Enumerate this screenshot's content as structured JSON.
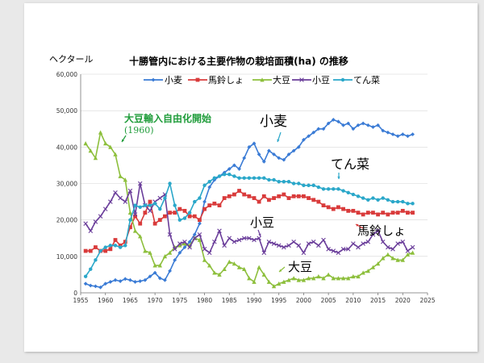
{
  "chart_data": {
    "type": "line",
    "title": "十勝管内における主要作物の栽培面積(ha) の推移",
    "ylabel": "ヘクタール",
    "xlim": [
      1955,
      2025
    ],
    "ylim": [
      0,
      60000
    ],
    "xticks": [
      1955,
      1960,
      1965,
      1970,
      1975,
      1980,
      1985,
      1990,
      1995,
      2000,
      2005,
      2010,
      2015,
      2020,
      2025
    ],
    "yticks": [
      0,
      10000,
      20000,
      30000,
      40000,
      50000,
      60000
    ],
    "ytick_labels": [
      "0",
      "10,000",
      "20,000",
      "30,000",
      "40,000",
      "50,000",
      "60,000"
    ],
    "grid": true,
    "legend_position": "top",
    "x": [
      1956,
      1957,
      1958,
      1959,
      1960,
      1961,
      1962,
      1963,
      1964,
      1965,
      1966,
      1967,
      1968,
      1969,
      1970,
      1971,
      1972,
      1973,
      1974,
      1975,
      1976,
      1977,
      1978,
      1979,
      1980,
      1981,
      1982,
      1983,
      1984,
      1985,
      1986,
      1987,
      1988,
      1989,
      1990,
      1991,
      1992,
      1993,
      1994,
      1995,
      1996,
      1997,
      1998,
      1999,
      2000,
      2001,
      2002,
      2003,
      2004,
      2005,
      2006,
      2007,
      2008,
      2009,
      2010,
      2011,
      2012,
      2013,
      2014,
      2015,
      2016,
      2017,
      2018,
      2019,
      2020,
      2021,
      2022
    ],
    "series": [
      {
        "name": "小麦",
        "color": "#3a7bd5",
        "marker": "diamond",
        "values": [
          2500,
          2000,
          1800,
          1500,
          2500,
          3000,
          3500,
          3200,
          3800,
          3500,
          3000,
          3200,
          3500,
          4500,
          5500,
          4000,
          3500,
          6000,
          9000,
          11000,
          12500,
          14000,
          16000,
          19000,
          25000,
          29000,
          31000,
          32000,
          33000,
          34000,
          35000,
          34000,
          37000,
          40000,
          41000,
          38000,
          36000,
          39000,
          38000,
          37000,
          36500,
          38000,
          39000,
          40000,
          42000,
          43000,
          44000,
          45000,
          45000,
          46500,
          47500,
          47000,
          46000,
          46500,
          45000,
          46000,
          46500,
          46000,
          45500,
          46000,
          44500,
          44000,
          43500,
          43000,
          43500,
          43000,
          43500
        ]
      },
      {
        "name": "馬鈴しょ",
        "color": "#d93b3b",
        "marker": "square",
        "values": [
          11500,
          11500,
          12500,
          11500,
          11500,
          12000,
          14500,
          13000,
          14000,
          18000,
          21000,
          19000,
          22000,
          25000,
          19000,
          20000,
          21000,
          22000,
          22000,
          23000,
          22500,
          21000,
          21000,
          20000,
          23000,
          24000,
          24500,
          24000,
          26000,
          26500,
          27000,
          28000,
          27000,
          26500,
          26000,
          25000,
          26500,
          25500,
          26000,
          26500,
          27000,
          26000,
          26500,
          26500,
          26500,
          26000,
          25500,
          25000,
          24000,
          23500,
          23000,
          23500,
          23000,
          22500,
          22500,
          22000,
          21500,
          22000,
          22000,
          21500,
          22000,
          21500,
          22000,
          22000,
          22500,
          22000,
          22000
        ]
      },
      {
        "name": "大豆",
        "color": "#8dbf3c",
        "marker": "triangle",
        "values": [
          41000,
          39000,
          37000,
          44000,
          41000,
          40000,
          38000,
          32000,
          31000,
          22000,
          17000,
          15500,
          11500,
          11000,
          7500,
          7500,
          10000,
          11000,
          12500,
          13000,
          13500,
          13000,
          15000,
          14500,
          9000,
          7500,
          5500,
          5000,
          6500,
          8500,
          8000,
          7000,
          6500,
          4000,
          3000,
          7000,
          5000,
          3000,
          1800,
          2500,
          3000,
          3500,
          4000,
          3500,
          3500,
          4000,
          4000,
          4500,
          4000,
          5000,
          4000,
          4000,
          4000,
          4000,
          4500,
          4500,
          5500,
          6000,
          7000,
          8000,
          9500,
          10500,
          9500,
          9000,
          9000,
          10500,
          11000
        ]
      },
      {
        "name": "小豆",
        "color": "#6a3d9a",
        "marker": "x",
        "values": [
          19000,
          17000,
          19500,
          21000,
          23000,
          25000,
          27500,
          26000,
          25000,
          28000,
          21500,
          30000,
          24000,
          22500,
          25000,
          26000,
          27000,
          16000,
          12000,
          13500,
          14000,
          12500,
          15000,
          16000,
          12000,
          11000,
          14000,
          17000,
          13000,
          15000,
          14000,
          14500,
          15000,
          15000,
          14500,
          15000,
          11000,
          14000,
          13500,
          13000,
          12500,
          13000,
          14000,
          13000,
          11000,
          13500,
          14000,
          13000,
          14500,
          12000,
          11500,
          11000,
          12000,
          12000,
          13500,
          12500,
          13500,
          14000,
          16000,
          17000,
          14000,
          12500,
          12000,
          13500,
          14000,
          11500,
          12500
        ]
      },
      {
        "name": "てん菜",
        "color": "#2aa7c9",
        "marker": "circle",
        "values": [
          4500,
          6500,
          9000,
          11500,
          12500,
          13000,
          13000,
          12500,
          13000,
          20000,
          24000,
          23500,
          24000,
          24000,
          24500,
          23000,
          26000,
          30000,
          24000,
          20000,
          20500,
          22000,
          25000,
          26000,
          29500,
          30500,
          31500,
          32000,
          32500,
          32500,
          32000,
          31500,
          31500,
          31500,
          31500,
          31500,
          31500,
          31000,
          31000,
          30500,
          30500,
          30500,
          30000,
          30000,
          29500,
          29500,
          29500,
          29000,
          28500,
          28500,
          28500,
          28500,
          28000,
          27500,
          27000,
          26500,
          26000,
          25500,
          26000,
          25500,
          26000,
          25500,
          25000,
          25000,
          25000,
          24500,
          24500
        ]
      }
    ],
    "annotations": [
      {
        "text": "大豆輸入自由化開始",
        "color": "#1f9c3a"
      },
      {
        "text": "(1960)",
        "color": "#1f9c3a"
      },
      {
        "text": "小麦",
        "color": "#000000"
      },
      {
        "text": "てん菜",
        "color": "#000000"
      },
      {
        "text": "小豆",
        "color": "#000000"
      },
      {
        "text": "馬鈴しょ",
        "color": "#000000"
      },
      {
        "text": "大豆",
        "color": "#000000"
      }
    ]
  }
}
